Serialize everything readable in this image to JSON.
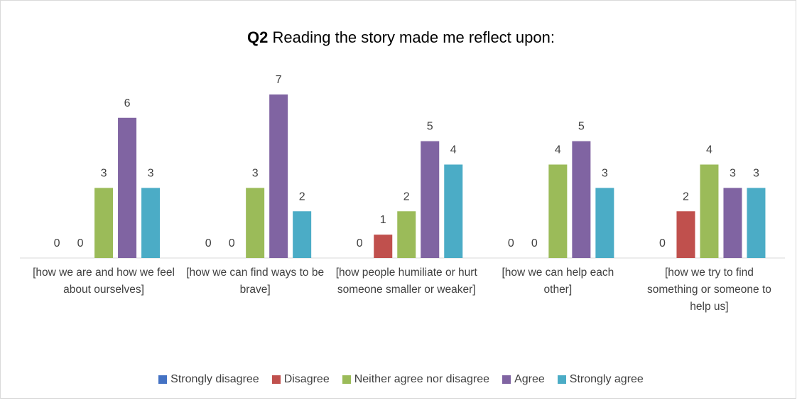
{
  "chart_data": {
    "type": "bar",
    "title": {
      "bold": "Q2",
      "text": "Reading the story made me reflect upon:"
    },
    "categories": [
      "[how we are and how we feel about ourselves]",
      "[how we can find ways to be brave]",
      "[how people humiliate or hurt someone smaller or weaker]",
      "[how we can help each other]",
      "[how we try to find something or someone to help us]"
    ],
    "series": [
      {
        "name": "Strongly disagree",
        "color": "#4472c4",
        "values": [
          0,
          0,
          0,
          0,
          0
        ]
      },
      {
        "name": "Disagree",
        "color": "#c0504d",
        "values": [
          0,
          0,
          1,
          0,
          2
        ]
      },
      {
        "name": "Neither agree nor disagree",
        "color": "#9bbb59",
        "values": [
          3,
          3,
          2,
          4,
          4
        ]
      },
      {
        "name": "Agree",
        "color": "#8064a2",
        "values": [
          6,
          7,
          5,
          5,
          3
        ]
      },
      {
        "name": "Strongly agree",
        "color": "#4bacc6",
        "values": [
          3,
          2,
          4,
          3,
          3
        ]
      }
    ],
    "ylim": [
      0,
      8
    ],
    "legend": "bottom"
  }
}
